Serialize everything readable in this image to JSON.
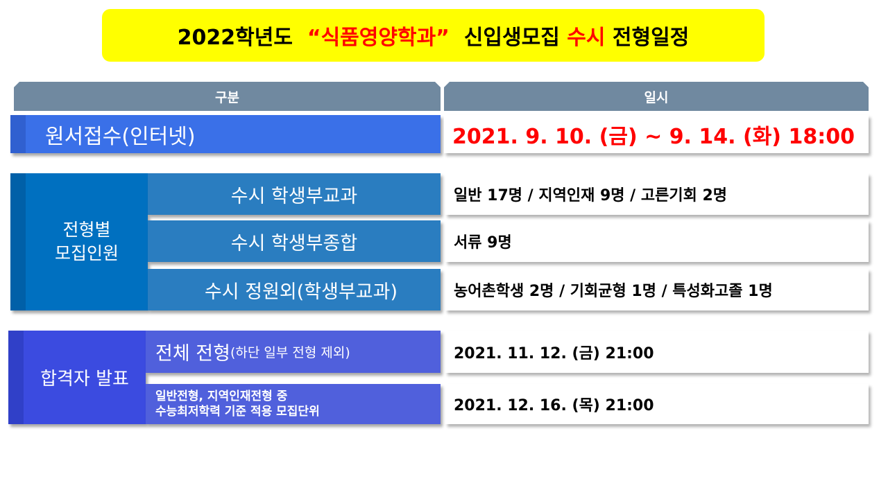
{
  "title": {
    "part1": "2022학년도  ",
    "part2": "“식품영양학과”",
    "part3": "  신입생모집 ",
    "part4": "수시",
    "part5": " 전형일정"
  },
  "header": {
    "col1": "구분",
    "col2": "일시"
  },
  "application": {
    "label": "원서접수(인터넷)",
    "date": "2021. 9. 10. (금) ~ 9. 14. (화) 18:00"
  },
  "quota": {
    "label_line1": "전형별",
    "label_line2": "모집인원",
    "rows": [
      {
        "label": "수시 학생부교과",
        "value": "일반 17명 / 지역인재 9명 / 고른기회 2명"
      },
      {
        "label": "수시 학생부종합",
        "value": "서류 9명"
      },
      {
        "label": "수시 정원외(학생부교과)",
        "value": "농어촌학생 2명 / 기회균형 1명 / 특성화고졸 1명"
      }
    ]
  },
  "announcement": {
    "label": "합격자 발표",
    "rows": [
      {
        "label_main": "전체 전형",
        "label_sub": "(하단 일부 전형 제외)",
        "value": "2021. 11. 12. (금) 21:00"
      },
      {
        "label_line1": "일반전형, 지역인재전형 중",
        "label_line2": "수능최저학력 기준 적용 모집단위",
        "value": "2021. 12. 16. (목) 21:00"
      }
    ]
  },
  "colors": {
    "title_bg": "#FFFF00",
    "accent_red": "#FF0000",
    "header": "#7089A0",
    "application": "#3A70E8",
    "quota": "#0070C0",
    "quota_rows": "#2A7DC0",
    "announcement": "#3B4BE0",
    "announcement_rows": "#5060DC"
  }
}
